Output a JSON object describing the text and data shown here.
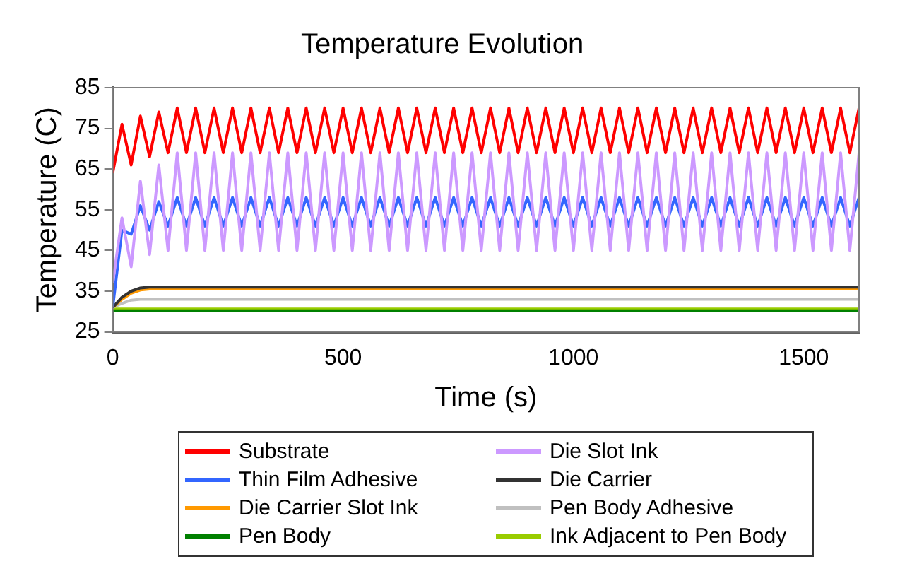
{
  "chart_data": {
    "type": "line",
    "title": "Temperature Evolution",
    "xlabel": "Time (s)",
    "ylabel": "Temperature (C)",
    "xlim": [
      0,
      1620
    ],
    "xticks": [
      0,
      500,
      1000,
      1500
    ],
    "ylim": [
      25,
      85
    ],
    "yticks": [
      25,
      35,
      45,
      55,
      65,
      75,
      85
    ],
    "grid": false,
    "legend": "bottom",
    "marker": "none",
    "line_style": "solid",
    "x": [
      0,
      20,
      40,
      60,
      80,
      100,
      120,
      140,
      160,
      180,
      200,
      220,
      240,
      260,
      280,
      300,
      320,
      340,
      360,
      380,
      400,
      420,
      440,
      460,
      480,
      500,
      520,
      540,
      560,
      580,
      600,
      620,
      640,
      660,
      680,
      700,
      720,
      740,
      760,
      780,
      800,
      820,
      840,
      860,
      880,
      900,
      920,
      940,
      960,
      980,
      1000,
      1020,
      1040,
      1060,
      1080,
      1100,
      1120,
      1140,
      1160,
      1180,
      1200,
      1220,
      1240,
      1260,
      1280,
      1300,
      1320,
      1340,
      1360,
      1380,
      1400,
      1420,
      1440,
      1460,
      1480,
      1500,
      1520,
      1540,
      1560,
      1580,
      1600,
      1620
    ],
    "series": [
      {
        "name": "Substrate",
        "color": "#ff0000",
        "values": [
          64,
          76,
          66,
          78,
          68,
          79,
          69,
          80,
          69,
          80,
          69,
          80,
          69,
          80,
          69,
          80,
          69,
          80,
          69,
          80,
          69,
          80,
          69,
          80,
          69,
          80,
          69,
          80,
          69,
          80,
          69,
          80,
          69,
          80,
          69,
          80,
          69,
          80,
          69,
          80,
          69,
          80,
          69,
          80,
          69,
          80,
          69,
          80,
          69,
          80,
          69,
          80,
          69,
          80,
          69,
          80,
          69,
          80,
          69,
          80,
          69,
          80,
          69,
          80,
          69,
          80,
          69,
          80,
          69,
          80,
          69,
          80,
          69,
          80,
          69,
          80,
          69,
          80,
          69,
          80,
          69,
          80
        ]
      },
      {
        "name": "Die Slot Ink",
        "color": "#cc99ff",
        "values": [
          37,
          53,
          41,
          62,
          44,
          66,
          45,
          69,
          45,
          69,
          45,
          69,
          45,
          69,
          45,
          69,
          45,
          69,
          45,
          69,
          45,
          69,
          45,
          69,
          45,
          69,
          45,
          69,
          45,
          69,
          45,
          69,
          45,
          69,
          45,
          69,
          45,
          69,
          45,
          69,
          45,
          69,
          45,
          69,
          45,
          69,
          45,
          69,
          45,
          69,
          45,
          69,
          45,
          69,
          45,
          69,
          45,
          69,
          45,
          69,
          45,
          69,
          45,
          69,
          45,
          69,
          45,
          69,
          45,
          69,
          45,
          69,
          45,
          69,
          45,
          69,
          45,
          69,
          45,
          69,
          45,
          69
        ]
      },
      {
        "name": "Thin Film Adhesive",
        "color": "#3366ff",
        "values": [
          31,
          50,
          49,
          56,
          50,
          57,
          51,
          58,
          51,
          58,
          51,
          58,
          51,
          58,
          51,
          58,
          51,
          58,
          51,
          58,
          51,
          58,
          51,
          58,
          51,
          58,
          51,
          58,
          51,
          58,
          51,
          58,
          51,
          58,
          51,
          58,
          51,
          58,
          51,
          58,
          51,
          58,
          51,
          58,
          51,
          58,
          51,
          58,
          51,
          58,
          51,
          58,
          51,
          58,
          51,
          58,
          51,
          58,
          51,
          58,
          51,
          58,
          51,
          58,
          51,
          58,
          51,
          58,
          51,
          58,
          51,
          58,
          51,
          58,
          51,
          58,
          51,
          58,
          51,
          58,
          51,
          58
        ]
      },
      {
        "name": "Die Carrier",
        "color": "#333333",
        "x": [
          0,
          20,
          40,
          60,
          80,
          1620
        ],
        "values": [
          31,
          33.5,
          35,
          35.8,
          36,
          36
        ]
      },
      {
        "name": "Die Carrier Slot Ink",
        "color": "#ff9900",
        "x": [
          0,
          20,
          40,
          60,
          80,
          1620
        ],
        "values": [
          31,
          33,
          34.5,
          35.3,
          35.5,
          35.5
        ]
      },
      {
        "name": "Pen Body Adhesive",
        "color": "#c0c0c0",
        "x": [
          0,
          20,
          40,
          60,
          80,
          1620
        ],
        "values": [
          31,
          32,
          32.8,
          33,
          33,
          33
        ]
      },
      {
        "name": "Pen Body",
        "color": "#008000",
        "x": [
          0,
          1620
        ],
        "values": [
          30.2,
          30.2
        ]
      },
      {
        "name": "Ink Adjacent to Pen Body",
        "color": "#99cc00",
        "x": [
          0,
          1620
        ],
        "values": [
          30.6,
          30.6
        ]
      }
    ]
  }
}
